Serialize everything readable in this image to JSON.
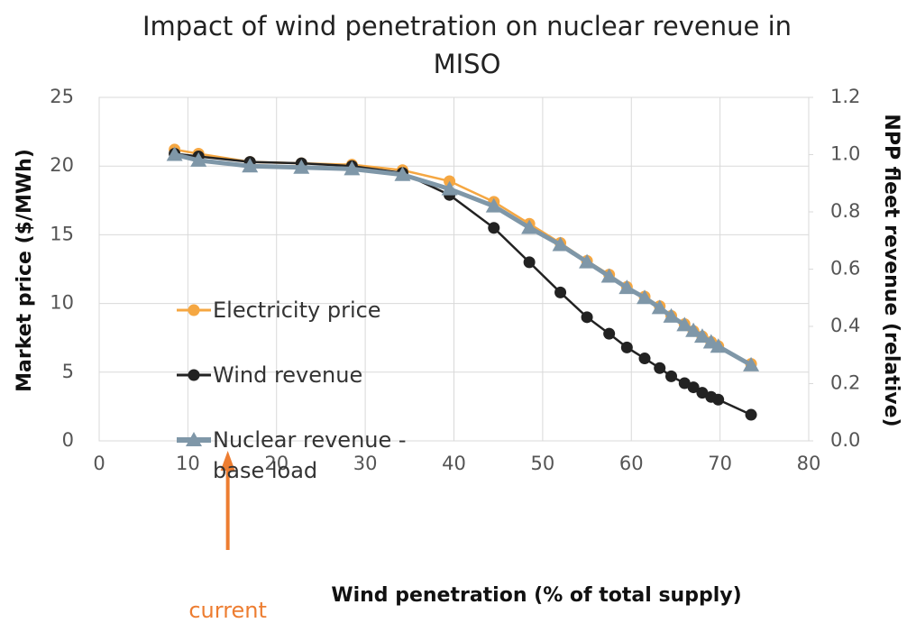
{
  "chart_data": {
    "type": "line",
    "title": "Impact of wind penetration on nuclear revenue in MISO",
    "x_label": "Wind penetration (% of total supply)",
    "y_label": "Market price ($/MWh)",
    "y2_label": "NPP fleet revenue (relative)",
    "x": [
      8.5,
      11.2,
      17,
      22.8,
      28.5,
      34.2,
      39.5,
      44.5,
      48.5,
      52,
      55,
      57.5,
      59.5,
      61.5,
      63.2,
      64.5,
      66,
      67,
      68,
      69,
      69.8,
      73.5
    ],
    "series": [
      {
        "name": "Electricity price",
        "color": "#f5a742",
        "marker": "circle",
        "values": [
          21.2,
          20.9,
          20.3,
          20.2,
          20.1,
          19.7,
          18.9,
          17.4,
          15.8,
          14.4,
          13.1,
          12.1,
          11.2,
          10.5,
          9.8,
          9.1,
          8.5,
          8.0,
          7.6,
          7.2,
          6.9,
          5.6
        ]
      },
      {
        "name": "Wind revenue",
        "color": "#222222",
        "marker": "circle",
        "values": [
          20.9,
          20.7,
          20.3,
          20.2,
          20.0,
          19.5,
          17.9,
          15.5,
          13.0,
          10.8,
          9.0,
          7.8,
          6.8,
          6.0,
          5.3,
          4.7,
          4.2,
          3.9,
          3.5,
          3.2,
          3.0,
          1.9
        ]
      },
      {
        "name": "Nuclear revenue - base load",
        "color": "#7f97a8",
        "marker": "triangle",
        "axis": "y2",
        "values": [
          1.0,
          0.98,
          0.96,
          0.955,
          0.95,
          0.93,
          0.88,
          0.82,
          0.745,
          0.685,
          0.625,
          0.575,
          0.535,
          0.5,
          0.465,
          0.435,
          0.405,
          0.385,
          0.365,
          0.345,
          0.33,
          0.265
        ]
      }
    ],
    "xlim": [
      0,
      80
    ],
    "xticks": [
      0,
      10,
      20,
      30,
      40,
      50,
      60,
      70,
      80
    ],
    "ylim": [
      0,
      25
    ],
    "yticks": [
      0,
      5,
      10,
      15,
      20,
      25
    ],
    "y2lim": [
      0,
      1.2
    ],
    "y2ticks": [
      {
        "value": 0,
        "label": "0.0"
      },
      0.2,
      0.4,
      0.6,
      0.8,
      {
        "value": 1,
        "label": "1.0"
      },
      1.2
    ],
    "grid": true,
    "legend": "center-left",
    "annotation": {
      "text": "current",
      "x": 14.5,
      "color": "#ed7d31"
    }
  }
}
